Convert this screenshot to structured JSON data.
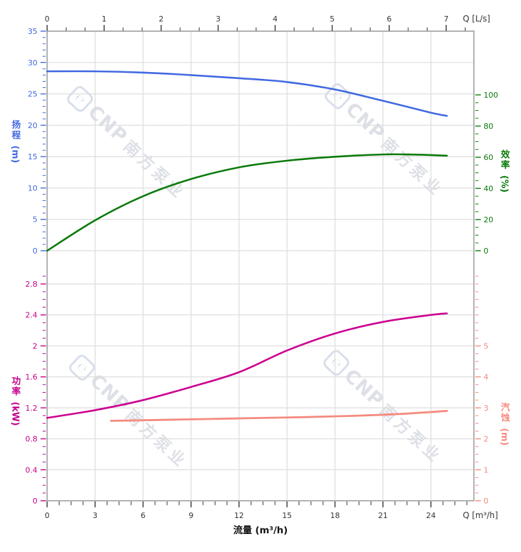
{
  "watermark": {
    "logo_char": "℮",
    "brand": "CNP",
    "name": "南方泵业",
    "color": "#c3c8d3"
  },
  "chart_data": {
    "type": "line",
    "x_bottom": {
      "label": "流量 (m³/h)",
      "corner_label": "Q [m³/h]",
      "min": 0,
      "max": 26.7,
      "major_ticks": [
        0,
        3,
        6,
        9,
        12,
        15,
        18,
        21,
        24
      ],
      "minor_step": 0.75,
      "minor_max": 26.25,
      "color": "#333333"
    },
    "x_top": {
      "corner_label": "Q [L/s]",
      "min": 0,
      "max": 7.49,
      "major_ticks": [
        0,
        1,
        2,
        3,
        4,
        5,
        6,
        7
      ],
      "minor_step": 0.3333,
      "minor_max": 7.34,
      "color": "#333333"
    },
    "y_axes": [
      {
        "id": "head",
        "title": "扬程",
        "unit": "(m)",
        "side": "left",
        "color": "#4169e1",
        "min": 0,
        "max": 35,
        "major_ticks": [
          0,
          5,
          10,
          15,
          20,
          25,
          30,
          35
        ],
        "minor_step": 1,
        "minor_max": 35
      },
      {
        "id": "eff",
        "title": "效率",
        "unit": "(%)",
        "side": "right",
        "color": "#0b7a0b",
        "min": 0,
        "max": 100,
        "major_ticks": [
          0,
          20,
          40,
          60,
          80,
          100
        ],
        "minor_step": 5,
        "minor_max": 100
      },
      {
        "id": "power",
        "title": "功率",
        "unit": "(kW)",
        "side": "left",
        "color": "#c4008c",
        "min": 0,
        "max": 2.8,
        "major_ticks": [
          0,
          0.4,
          0.8,
          1.2,
          1.6,
          2,
          2.4,
          2.8
        ],
        "minor_step": 0.1,
        "minor_max": 2.9
      },
      {
        "id": "npsh",
        "title": "汽蚀",
        "unit": "(m)",
        "side": "right",
        "color": "#f58a7e",
        "min": 0,
        "max": 5,
        "major_ticks": [
          0,
          1,
          2,
          3,
          4,
          5
        ],
        "minor_step": 0.25,
        "minor_max": 7.25
      }
    ],
    "series": [
      {
        "id": "head_curve",
        "name": "扬程",
        "axis": "head",
        "color": "#4169e1",
        "width": 2.6,
        "points": [
          [
            0,
            28.6
          ],
          [
            3,
            28.6
          ],
          [
            6,
            28.4
          ],
          [
            9,
            28.0
          ],
          [
            12,
            27.5
          ],
          [
            15,
            26.9
          ],
          [
            18,
            25.7
          ],
          [
            21,
            23.9
          ],
          [
            24,
            22.0
          ],
          [
            25,
            21.5
          ]
        ]
      },
      {
        "id": "eff_curve",
        "name": "效率",
        "axis": "eff",
        "color": "#0b7a0b",
        "width": 2.6,
        "points": [
          [
            0,
            0
          ],
          [
            3,
            19.5
          ],
          [
            6,
            35
          ],
          [
            9,
            46
          ],
          [
            12,
            53.5
          ],
          [
            15,
            57.8
          ],
          [
            18,
            60.3
          ],
          [
            21,
            61.8
          ],
          [
            23,
            61.7
          ],
          [
            25,
            61.0
          ]
        ]
      },
      {
        "id": "power_curve",
        "name": "功率",
        "axis": "power",
        "color": "#cc0090",
        "width": 2.6,
        "points": [
          [
            0,
            1.07
          ],
          [
            3,
            1.17
          ],
          [
            6,
            1.3
          ],
          [
            9,
            1.47
          ],
          [
            12,
            1.66
          ],
          [
            15,
            1.94
          ],
          [
            18,
            2.16
          ],
          [
            21,
            2.31
          ],
          [
            24,
            2.4
          ],
          [
            25,
            2.42
          ]
        ]
      },
      {
        "id": "npsh_curve",
        "name": "汽蚀",
        "axis": "npsh",
        "color": "#f58a7e",
        "width": 2.8,
        "points": [
          [
            4,
            2.58
          ],
          [
            7,
            2.61
          ],
          [
            10,
            2.64
          ],
          [
            13,
            2.67
          ],
          [
            16,
            2.7
          ],
          [
            19,
            2.74
          ],
          [
            22,
            2.8
          ],
          [
            25,
            2.9
          ]
        ]
      }
    ],
    "grid": {
      "color": "#dcdcdc",
      "frame_color": "#999999"
    }
  }
}
